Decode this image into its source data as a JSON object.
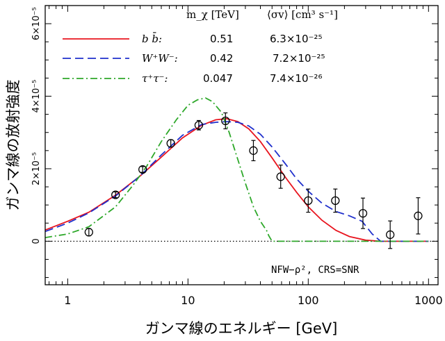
{
  "chart_data": {
    "type": "line",
    "xlabel": "ガンマ線のエネルギー [GeV]",
    "ylabel": "ガンマ線の放射強度",
    "xscale": "log",
    "xlim": [
      0.65,
      1200
    ],
    "ylim": [
      -1.2e-05,
      6.5e-05
    ],
    "x_ticks": [
      1,
      10,
      100,
      1000
    ],
    "x_tick_labels": [
      "1",
      "10",
      "100",
      "1000"
    ],
    "y_ticks": [
      0,
      2e-05,
      4e-05,
      6e-05
    ],
    "y_tick_labels": [
      "0",
      "2×10⁻⁵",
      "4×10⁻⁵",
      "6×10⁻⁵"
    ],
    "y_exponent_label": "×10⁻⁵",
    "legend": {
      "header_mass": "m_χ [TeV]",
      "header_sigma": "⟨σv⟩ [cm³ s⁻¹]",
      "entries": [
        {
          "label": "b b̄:",
          "mass": "0.51",
          "sigma": "6.3×10⁻²⁵",
          "color": "#e8141e",
          "style": "solid"
        },
        {
          "label": "W⁺W⁻:",
          "mass": "0.42",
          "sigma": "7.2×10⁻²⁵",
          "color": "#1f2fcc",
          "style": "dashed"
        },
        {
          "label": "τ⁺τ⁻:",
          "mass": "0.047",
          "sigma": "7.4×10⁻²⁶",
          "color": "#2ea82a",
          "style": "dashdot"
        }
      ]
    },
    "annotation": "NFW−ρ², CRS=SNR",
    "series": [
      {
        "name": "bb",
        "color": "#e8141e",
        "x": [
          0.65,
          1,
          1.5,
          2.5,
          4,
          6,
          9,
          13,
          17,
          21,
          26,
          32,
          40,
          50,
          65,
          80,
          100,
          130,
          170,
          220,
          300,
          400,
          500,
          700,
          1000
        ],
        "y": [
          3.1e-06,
          5.5e-06,
          8e-06,
          1.27e-05,
          1.8e-05,
          2.32e-05,
          2.85e-05,
          3.2e-05,
          3.35e-05,
          3.38e-05,
          3.3e-05,
          3.1e-05,
          2.75e-05,
          2.3e-05,
          1.75e-05,
          1.35e-05,
          9.5e-06,
          5.8e-06,
          3e-06,
          1.3e-06,
          3e-07,
          0.0,
          0.0,
          0.0,
          0.0
        ]
      },
      {
        "name": "WW",
        "color": "#1f2fcc",
        "x": [
          0.65,
          1,
          1.5,
          2.5,
          4,
          6,
          9,
          13,
          17,
          21,
          26,
          32,
          40,
          50,
          65,
          80,
          100,
          130,
          170,
          220,
          280,
          340,
          400,
          500,
          1000
        ],
        "y": [
          2.7e-06,
          5e-06,
          7.8e-06,
          1.25e-05,
          1.8e-05,
          2.38e-05,
          2.92e-05,
          3.22e-05,
          3.28e-05,
          3.3e-05,
          3.28e-05,
          3.18e-05,
          2.95e-05,
          2.6e-05,
          2.12e-05,
          1.72e-05,
          1.38e-05,
          1.05e-05,
          8.2e-06,
          7e-06,
          5.5e-06,
          2e-06,
          0.0,
          0.0,
          0.0
        ]
      },
      {
        "name": "tautau",
        "color": "#2ea82a",
        "x": [
          0.65,
          1,
          1.5,
          2.5,
          3.5,
          4.5,
          6,
          8,
          10,
          12,
          14,
          16,
          19,
          22,
          26,
          30,
          35,
          40,
          45,
          47,
          50,
          100,
          1000
        ],
        "y": [
          1e-06,
          2e-06,
          4e-06,
          9.5e-06,
          1.55e-05,
          2.05e-05,
          2.75e-05,
          3.35e-05,
          3.75e-05,
          3.9e-05,
          3.95e-05,
          3.85e-05,
          3.55e-05,
          3e-05,
          2.25e-05,
          1.6e-05,
          9.5e-06,
          5.5e-06,
          3e-06,
          1.5e-06,
          0.0,
          0.0,
          0.0
        ]
      }
    ],
    "data_points": {
      "x": [
        1.5,
        2.5,
        4.2,
        7.2,
        12.3,
        20.5,
        35,
        59,
        100,
        168,
        285,
        480,
        820
      ],
      "y": [
        2.5e-06,
        1.28e-05,
        1.98e-05,
        2.7e-05,
        3.2e-05,
        3.32e-05,
        2.5e-05,
        1.78e-05,
        1.12e-05,
        1.12e-05,
        7.7e-06,
        1.8e-06,
        7e-06
      ],
      "yerr": [
        1e-06,
        8e-07,
        8e-07,
        1e-06,
        1.3e-06,
        2.2e-06,
        2.8e-06,
        3.2e-06,
        3.2e-06,
        3.2e-06,
        4.2e-06,
        3.8e-06,
        5e-06
      ]
    }
  }
}
